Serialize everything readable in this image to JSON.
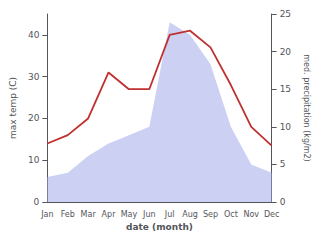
{
  "chart_data": {
    "type": "line",
    "xlabel": "date (month)",
    "ylabel": "max temp (C)",
    "y2label": "med. precipitation (kg/m2)",
    "categories": [
      "Jan",
      "Feb",
      "Mar",
      "Apr",
      "May",
      "Jun",
      "Jul",
      "Aug",
      "Sep",
      "Oct",
      "Nov",
      "Dec"
    ],
    "series": [
      {
        "type": "area",
        "color": "#b0b8ee",
        "values": [
          6.0,
          7.0,
          11.0,
          14.0,
          16.0,
          18.0,
          43.0,
          40.0,
          33.0,
          18.0,
          9.0,
          7.0
        ]
      },
      {
        "type": "line",
        "color": "#c03030",
        "values": [
          14.0,
          16.0,
          20.0,
          31.0,
          27.0,
          27.0,
          40.0,
          41.0,
          37.0,
          28.0,
          18.0,
          13.5
        ]
      }
    ],
    "ylim": [
      0,
      45
    ],
    "yticks": [
      0,
      10,
      20,
      30,
      40
    ],
    "y2lim": [
      0,
      25
    ],
    "y2ticks": [
      0,
      5,
      10,
      15,
      20,
      25
    ],
    "grid": false
  }
}
